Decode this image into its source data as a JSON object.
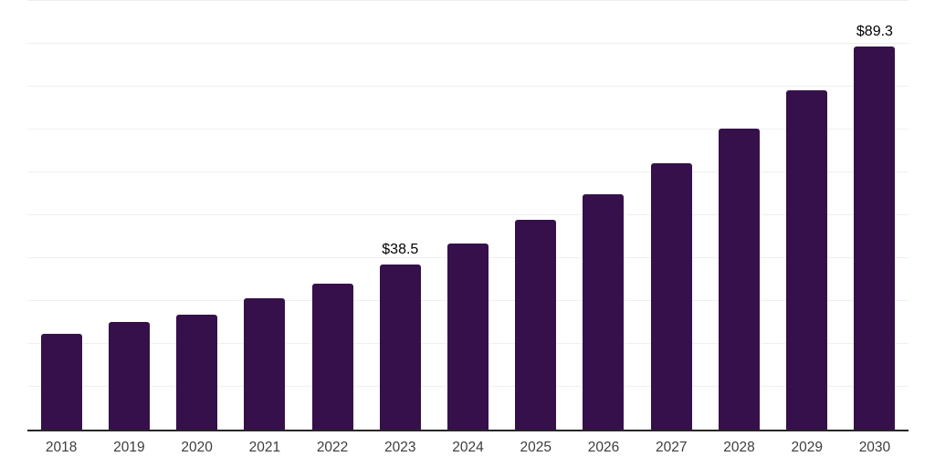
{
  "chart_data": {
    "type": "bar",
    "title": "",
    "xlabel": "",
    "ylabel": "",
    "categories": [
      "2018",
      "2019",
      "2020",
      "2021",
      "2022",
      "2023",
      "2024",
      "2025",
      "2026",
      "2027",
      "2028",
      "2029",
      "2030"
    ],
    "values": [
      22.3,
      25.2,
      26.9,
      30.7,
      34.1,
      38.5,
      43.4,
      48.9,
      55.0,
      62.1,
      70.2,
      79.1,
      89.3
    ],
    "data_labels": [
      "",
      "",
      "",
      "",
      "",
      "$38.5",
      "",
      "",
      "",
      "",
      "",
      "",
      "$89.3"
    ],
    "ylim": [
      0,
      100
    ],
    "gridline_step": 10,
    "grid": "horizontal",
    "legend": "none",
    "y_axis_labels_visible": false,
    "colors": {
      "bar": "#36104A",
      "axis": "#262626",
      "gridline": "#efefef",
      "tick_label": "#3d3d3d",
      "data_label": "#000000",
      "background": "#ffffff"
    }
  }
}
